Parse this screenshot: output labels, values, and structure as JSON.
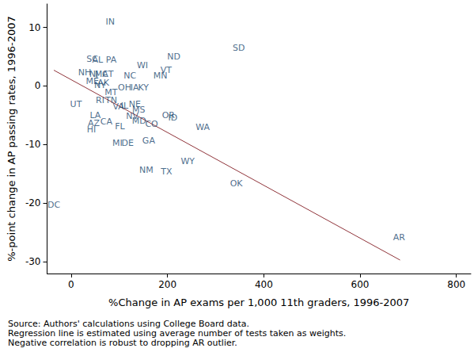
{
  "chart_data": {
    "type": "scatter",
    "marker": "text",
    "color": "#1a476f",
    "grid": false,
    "x_label": "%Change in AP exams per 1,000 11th graders, 1996-2007",
    "y_label": "%-point change in AP passing rates, 1996-2007",
    "notes": [
      "Source: Authors' calculations using College Board data.",
      "Regression line is estimated using average number of tests taken as weights.",
      "Negative correlation is robust to dropping AR outlier."
    ],
    "xlim": [
      -50,
      830
    ],
    "xticks": [
      0,
      200,
      400,
      600,
      800
    ],
    "ylim": [
      -32,
      14
    ],
    "yticks": [
      -30,
      -20,
      -10,
      0,
      10
    ],
    "point_labels": [
      "IN",
      "SD",
      "ND",
      "SC",
      "AL",
      "PA",
      "WI",
      "VT",
      "NH",
      "NJ",
      "MA",
      "CT",
      "NC",
      "MN",
      "NY",
      "ME",
      "AK",
      "MT",
      "OH",
      "IA",
      "KY",
      "UT",
      "RI",
      "TN",
      "VA",
      "IL",
      "NE",
      "MS",
      "NV",
      "LA",
      "OR",
      "ID",
      "AZ",
      "CA",
      "MD",
      "CO",
      "WA",
      "FL",
      "HI",
      "GA",
      "MI",
      "DE",
      "WY",
      "NM",
      "TX",
      "OK",
      "DC",
      "AR"
    ],
    "x": [
      81,
      348,
      213,
      44,
      55,
      83,
      148,
      197,
      28,
      47,
      63,
      76,
      122,
      185,
      60,
      44,
      67,
      83,
      111,
      132,
      150,
      10,
      60,
      83,
      98,
      111,
      132,
      140,
      127,
      50,
      202,
      211,
      47,
      73,
      141,
      167,
      273,
      101,
      42,
      161,
      96,
      117,
      242,
      156,
      198,
      343,
      -36,
      681
    ],
    "values": [
      10.9,
      6.5,
      5.0,
      4.6,
      4.5,
      4.4,
      3.5,
      2.7,
      2.3,
      2.0,
      2.0,
      2.0,
      1.8,
      1.8,
      0.1,
      0.8,
      0.5,
      -1.1,
      -0.3,
      -0.3,
      -0.3,
      -3.1,
      -2.4,
      -2.4,
      -3.5,
      -3.4,
      -3.1,
      -4.1,
      -5.2,
      -5.0,
      -5.0,
      -5.4,
      -6.3,
      -6.1,
      -5.9,
      -6.5,
      -7.1,
      -6.9,
      -7.5,
      -9.4,
      -9.8,
      -9.8,
      -12.9,
      -14.4,
      -14.6,
      -16.6,
      -20.3,
      -25.9
    ],
    "regression": {
      "type": "line",
      "color": "#90353b",
      "line_style": "solid",
      "x": [
        -36,
        683
      ],
      "values": [
        2.7,
        -29.7
      ]
    }
  }
}
